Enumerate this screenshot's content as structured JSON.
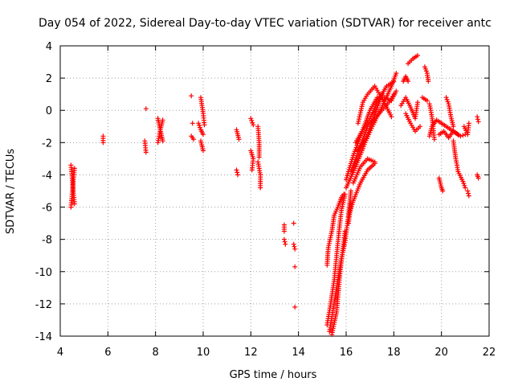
{
  "chart_data": {
    "type": "scatter",
    "title": "Day 054 of 2022, Sidereal Day-to-day VTEC variation (SDTVAR) for receiver antc",
    "xlabel": "GPS time / hours",
    "ylabel": "SDTVAR / TECUs",
    "xlim": [
      4,
      22
    ],
    "ylim": [
      -14,
      4
    ],
    "xticks": [
      "4",
      "6",
      "8",
      "10",
      "12",
      "14",
      "16",
      "18",
      "20",
      "22"
    ],
    "yticks": [
      "-14",
      "-12",
      "-10",
      "-8",
      "-6",
      "-4",
      "-2",
      "0",
      "2",
      "4"
    ],
    "grid": true,
    "marker": "+",
    "color": "#ff0000",
    "series": [
      {
        "name": "SDTVAR",
        "segments": [
          [
            [
              4.45,
              -3.4
            ],
            [
              4.5,
              -4.2
            ],
            [
              4.55,
              -5.0
            ],
            [
              4.6,
              -5.8
            ]
          ],
          [
            [
              4.45,
              -6.0
            ],
            [
              4.5,
              -5.2
            ],
            [
              4.55,
              -4.4
            ],
            [
              4.6,
              -3.6
            ]
          ],
          [
            [
              5.8,
              -1.6
            ],
            [
              5.8,
              -2.0
            ]
          ],
          [
            [
              7.6,
              0.1
            ]
          ],
          [
            [
              7.55,
              -1.9
            ],
            [
              7.6,
              -2.6
            ]
          ],
          [
            [
              8.1,
              -2.0
            ],
            [
              8.2,
              -1.2
            ],
            [
              8.3,
              -0.6
            ]
          ],
          [
            [
              8.1,
              -0.5
            ],
            [
              8.2,
              -1.2
            ],
            [
              8.3,
              -1.9
            ]
          ],
          [
            [
              9.5,
              0.9
            ]
          ],
          [
            [
              9.55,
              -0.8
            ]
          ],
          [
            [
              9.5,
              -1.6
            ],
            [
              9.6,
              -1.8
            ]
          ],
          [
            [
              9.8,
              -0.8
            ],
            [
              9.9,
              -1.2
            ],
            [
              10.0,
              -1.5
            ]
          ],
          [
            [
              9.9,
              0.8
            ],
            [
              10.0,
              -0.2
            ],
            [
              10.05,
              -0.9
            ]
          ],
          [
            [
              9.9,
              -1.9
            ],
            [
              10.0,
              -2.5
            ]
          ],
          [
            [
              11.4,
              -1.2
            ],
            [
              11.5,
              -1.8
            ]
          ],
          [
            [
              11.4,
              -3.7
            ],
            [
              11.45,
              -4.0
            ]
          ],
          [
            [
              12.0,
              -0.5
            ],
            [
              12.1,
              -0.9
            ]
          ],
          [
            [
              12.0,
              -2.5
            ],
            [
              12.1,
              -3.0
            ],
            [
              12.05,
              -3.7
            ]
          ],
          [
            [
              12.3,
              -1.0
            ],
            [
              12.35,
              -2.0
            ],
            [
              12.35,
              -2.9
            ]
          ],
          [
            [
              12.3,
              -3.2
            ],
            [
              12.4,
              -4.0
            ],
            [
              12.4,
              -4.8
            ]
          ],
          [
            [
              13.4,
              -7.1
            ],
            [
              13.4,
              -7.5
            ]
          ],
          [
            [
              13.4,
              -8.0
            ],
            [
              13.45,
              -8.3
            ]
          ],
          [
            [
              13.8,
              -7.0
            ]
          ],
          [
            [
              13.8,
              -8.3
            ],
            [
              13.85,
              -8.6
            ]
          ],
          [
            [
              13.85,
              -9.7
            ]
          ],
          [
            [
              13.85,
              -12.2
            ]
          ],
          [
            [
              15.2,
              -13.3
            ],
            [
              15.35,
              -12.0
            ],
            [
              15.5,
              -10.5
            ],
            [
              15.6,
              -9.0
            ],
            [
              15.7,
              -7.5
            ],
            [
              15.8,
              -6.2
            ],
            [
              15.95,
              -5.2
            ]
          ],
          [
            [
              15.3,
              -13.7
            ],
            [
              15.45,
              -12.4
            ],
            [
              15.6,
              -11.0
            ],
            [
              15.8,
              -9.2
            ],
            [
              15.95,
              -8.2
            ],
            [
              16.1,
              -6.5
            ],
            [
              16.2,
              -5.0
            ]
          ],
          [
            [
              15.4,
              -13.9
            ],
            [
              15.6,
              -12.5
            ],
            [
              15.75,
              -10.0
            ],
            [
              15.95,
              -7.5
            ]
          ],
          [
            [
              15.2,
              -9.6
            ],
            [
              15.25,
              -8.5
            ],
            [
              15.4,
              -7.5
            ],
            [
              15.5,
              -6.5
            ],
            [
              15.65,
              -6.0
            ],
            [
              15.8,
              -5.4
            ],
            [
              15.9,
              -5.2
            ]
          ],
          [
            [
              16.1,
              -7.0
            ],
            [
              16.2,
              -5.8
            ]
          ],
          [
            [
              16.0,
              -4.3
            ],
            [
              16.3,
              -2.8
            ],
            [
              16.7,
              -1.2
            ],
            [
              17.0,
              0.0
            ],
            [
              17.3,
              0.8
            ],
            [
              17.6,
              0.8
            ],
            [
              17.9,
              0.6
            ],
            [
              18.1,
              1.2
            ]
          ],
          [
            [
              16.2,
              -3.8
            ],
            [
              16.6,
              -2.2
            ],
            [
              16.9,
              -1.0
            ],
            [
              17.2,
              -0.5
            ],
            [
              17.5,
              0.0
            ],
            [
              17.8,
              0.5
            ],
            [
              18.0,
              1.0
            ]
          ],
          [
            [
              16.0,
              -4.8
            ],
            [
              16.4,
              -3.5
            ],
            [
              16.8,
              -2.0
            ],
            [
              17.1,
              -1.0
            ],
            [
              17.5,
              0.2
            ],
            [
              17.9,
              1.5
            ],
            [
              18.1,
              2.3
            ]
          ],
          [
            [
              16.3,
              -4.5
            ],
            [
              16.6,
              -3.5
            ],
            [
              16.9,
              -3.0
            ],
            [
              17.2,
              -3.2
            ]
          ],
          [
            [
              16.4,
              -2.0
            ],
            [
              16.7,
              -1.2
            ],
            [
              17.0,
              -0.5
            ],
            [
              17.3,
              0.5
            ],
            [
              17.7,
              1.5
            ],
            [
              18.0,
              1.8
            ]
          ],
          [
            [
              16.5,
              -2.5
            ],
            [
              16.9,
              -1.5
            ],
            [
              17.2,
              -0.3
            ],
            [
              17.5,
              1.0
            ]
          ],
          [
            [
              16.1,
              -6.6
            ],
            [
              16.3,
              -5.6
            ],
            [
              16.6,
              -4.5
            ],
            [
              16.9,
              -3.7
            ],
            [
              17.2,
              -3.3
            ]
          ],
          [
            [
              16.5,
              -0.8
            ],
            [
              16.7,
              0.5
            ],
            [
              16.9,
              1.0
            ],
            [
              17.2,
              1.5
            ],
            [
              17.4,
              1.0
            ],
            [
              17.7,
              0.2
            ],
            [
              17.9,
              -0.4
            ]
          ],
          [
            [
              18.4,
              1.8
            ],
            [
              18.5,
              2.1
            ],
            [
              18.6,
              1.8
            ]
          ],
          [
            [
              18.3,
              0.3
            ],
            [
              18.5,
              0.8
            ],
            [
              18.7,
              0.2
            ],
            [
              18.9,
              -0.5
            ],
            [
              19.0,
              0.5
            ]
          ],
          [
            [
              18.5,
              -0.2
            ],
            [
              18.7,
              -0.8
            ],
            [
              18.9,
              -1.3
            ],
            [
              19.1,
              -1.0
            ]
          ],
          [
            [
              18.6,
              2.9
            ],
            [
              18.8,
              3.2
            ],
            [
              19.0,
              3.4
            ]
          ],
          [
            [
              19.3,
              2.7
            ],
            [
              19.4,
              2.3
            ],
            [
              19.45,
              1.8
            ]
          ],
          [
            [
              19.2,
              0.8
            ],
            [
              19.4,
              0.6
            ]
          ],
          [
            [
              19.5,
              0.4
            ],
            [
              19.6,
              -0.4
            ],
            [
              19.65,
              -1.0
            ],
            [
              19.7,
              -1.8
            ]
          ],
          [
            [
              19.5,
              -1.6
            ],
            [
              19.6,
              -1.0
            ],
            [
              19.8,
              -0.6
            ],
            [
              20.0,
              -0.8
            ],
            [
              20.2,
              -1.0
            ],
            [
              20.4,
              -1.2
            ],
            [
              20.6,
              -1.4
            ],
            [
              20.8,
              -1.6
            ],
            [
              21.0,
              -1.5
            ]
          ],
          [
            [
              19.9,
              -1.5
            ],
            [
              20.1,
              -1.3
            ],
            [
              20.3,
              -1.7
            ],
            [
              20.5,
              -1.3
            ],
            [
              20.7,
              -1.5
            ]
          ],
          [
            [
              20.2,
              0.8
            ],
            [
              20.3,
              0.4
            ],
            [
              20.4,
              -0.4
            ],
            [
              20.5,
              -1.0
            ]
          ],
          [
            [
              20.5,
              -1.9
            ],
            [
              20.6,
              -3.0
            ],
            [
              20.7,
              -3.8
            ],
            [
              20.9,
              -4.4
            ],
            [
              21.0,
              -4.8
            ]
          ],
          [
            [
              19.9,
              -4.2
            ],
            [
              20.0,
              -4.8
            ],
            [
              20.05,
              -5.0
            ]
          ],
          [
            [
              20.95,
              -1.0
            ],
            [
              21.1,
              -1.5
            ],
            [
              21.15,
              -0.8
            ]
          ],
          [
            [
              21.1,
              -5.0
            ],
            [
              21.15,
              -5.3
            ]
          ],
          [
            [
              21.5,
              -0.4
            ],
            [
              21.55,
              -0.7
            ]
          ],
          [
            [
              21.5,
              -4.0
            ],
            [
              21.55,
              -4.2
            ]
          ]
        ]
      }
    ]
  }
}
